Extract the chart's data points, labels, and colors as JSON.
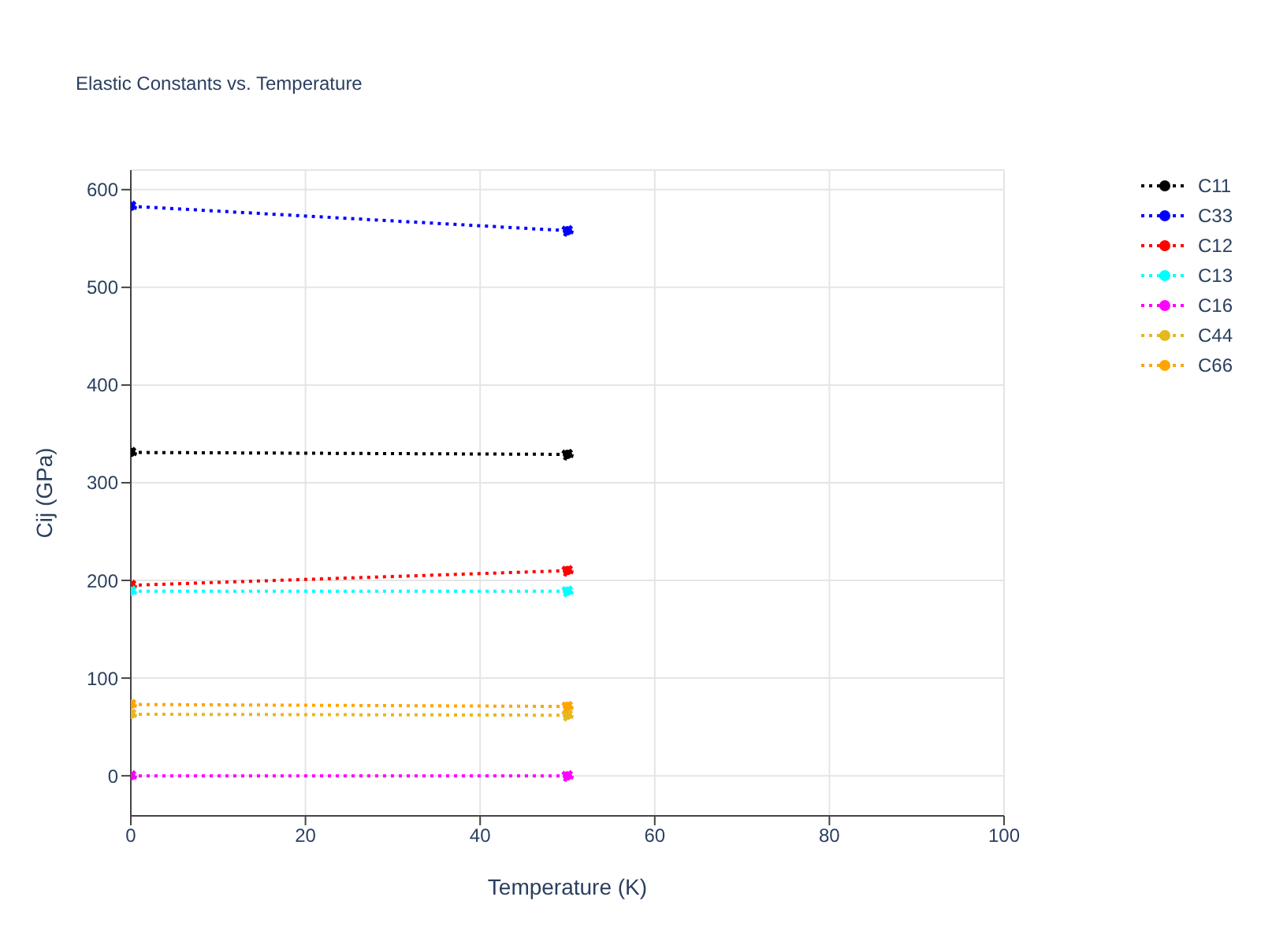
{
  "chart_data": {
    "type": "line",
    "title": "Elastic Constants vs. Temperature",
    "xlabel": "Temperature (K)",
    "ylabel": "Cij (GPa)",
    "x": [
      0,
      50
    ],
    "series": [
      {
        "name": "C11",
        "color": "#000000",
        "values": [
          331,
          329
        ]
      },
      {
        "name": "C33",
        "color": "#0000ff",
        "values": [
          583,
          558
        ]
      },
      {
        "name": "C12",
        "color": "#ff0000",
        "values": [
          195,
          210
        ]
      },
      {
        "name": "C13",
        "color": "#00ffff",
        "values": [
          189,
          189
        ]
      },
      {
        "name": "C16",
        "color": "#ff00ff",
        "values": [
          0,
          0
        ]
      },
      {
        "name": "C44",
        "color": "#e6b820",
        "values": [
          63,
          62
        ]
      },
      {
        "name": "C66",
        "color": "#ffa500",
        "values": [
          73,
          71
        ]
      }
    ],
    "xlim": [
      0,
      100
    ],
    "xticks": [
      0,
      20,
      40,
      60,
      80,
      100
    ],
    "ylim": [
      -41,
      620
    ],
    "yticks": [
      0,
      100,
      200,
      300,
      400,
      500,
      600
    ],
    "grid": true,
    "legend": "top right",
    "marker": "circle",
    "line_style": "dotted"
  }
}
